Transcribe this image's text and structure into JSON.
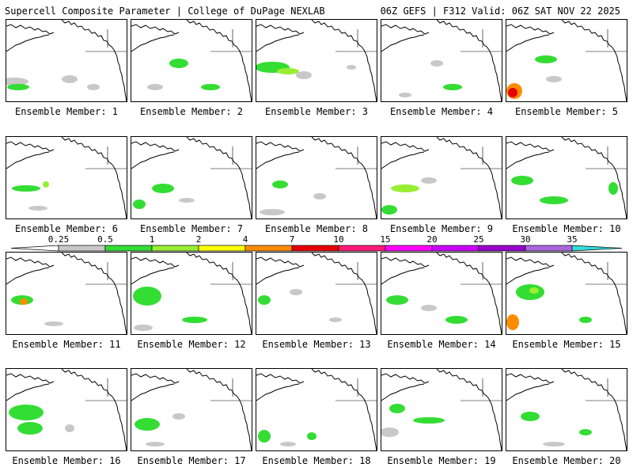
{
  "header": {
    "title_left": "Supercell Composite Parameter | College of DuPage NEXLAB",
    "title_right": "06Z GEFS | F312 Valid: 06Z SAT NOV 22 2025"
  },
  "member_prefix": "Ensemble Member: ",
  "members": [
    {
      "label": "Ensemble Member: 1"
    },
    {
      "label": "Ensemble Member: 2"
    },
    {
      "label": "Ensemble Member: 3"
    },
    {
      "label": "Ensemble Member: 4"
    },
    {
      "label": "Ensemble Member: 5"
    },
    {
      "label": "Ensemble Member: 6"
    },
    {
      "label": "Ensemble Member: 7"
    },
    {
      "label": "Ensemble Member: 8"
    },
    {
      "label": "Ensemble Member: 9"
    },
    {
      "label": "Ensemble Member: 10"
    },
    {
      "label": "Ensemble Member: 11"
    },
    {
      "label": "Ensemble Member: 12"
    },
    {
      "label": "Ensemble Member: 13"
    },
    {
      "label": "Ensemble Member: 14"
    },
    {
      "label": "Ensemble Member: 15"
    },
    {
      "label": "Ensemble Member: 16"
    },
    {
      "label": "Ensemble Member: 17"
    },
    {
      "label": "Ensemble Member: 18"
    },
    {
      "label": "Ensemble Member: 19"
    },
    {
      "label": "Ensemble Member: 20"
    }
  ],
  "colorbar": {
    "thresholds": [
      "0.25",
      "0.5",
      "1",
      "2",
      "4",
      "7",
      "10",
      "15",
      "20",
      "25",
      "30",
      "35"
    ],
    "colors": [
      "#c8c8c8",
      "#33dd33",
      "#99ee33",
      "#ffff00",
      "#ff8c00",
      "#e60000",
      "#ff1a7a",
      "#ff00ff",
      "#cc00ff",
      "#9900cc",
      "#aa66dd",
      "#33dddd"
    ]
  }
}
